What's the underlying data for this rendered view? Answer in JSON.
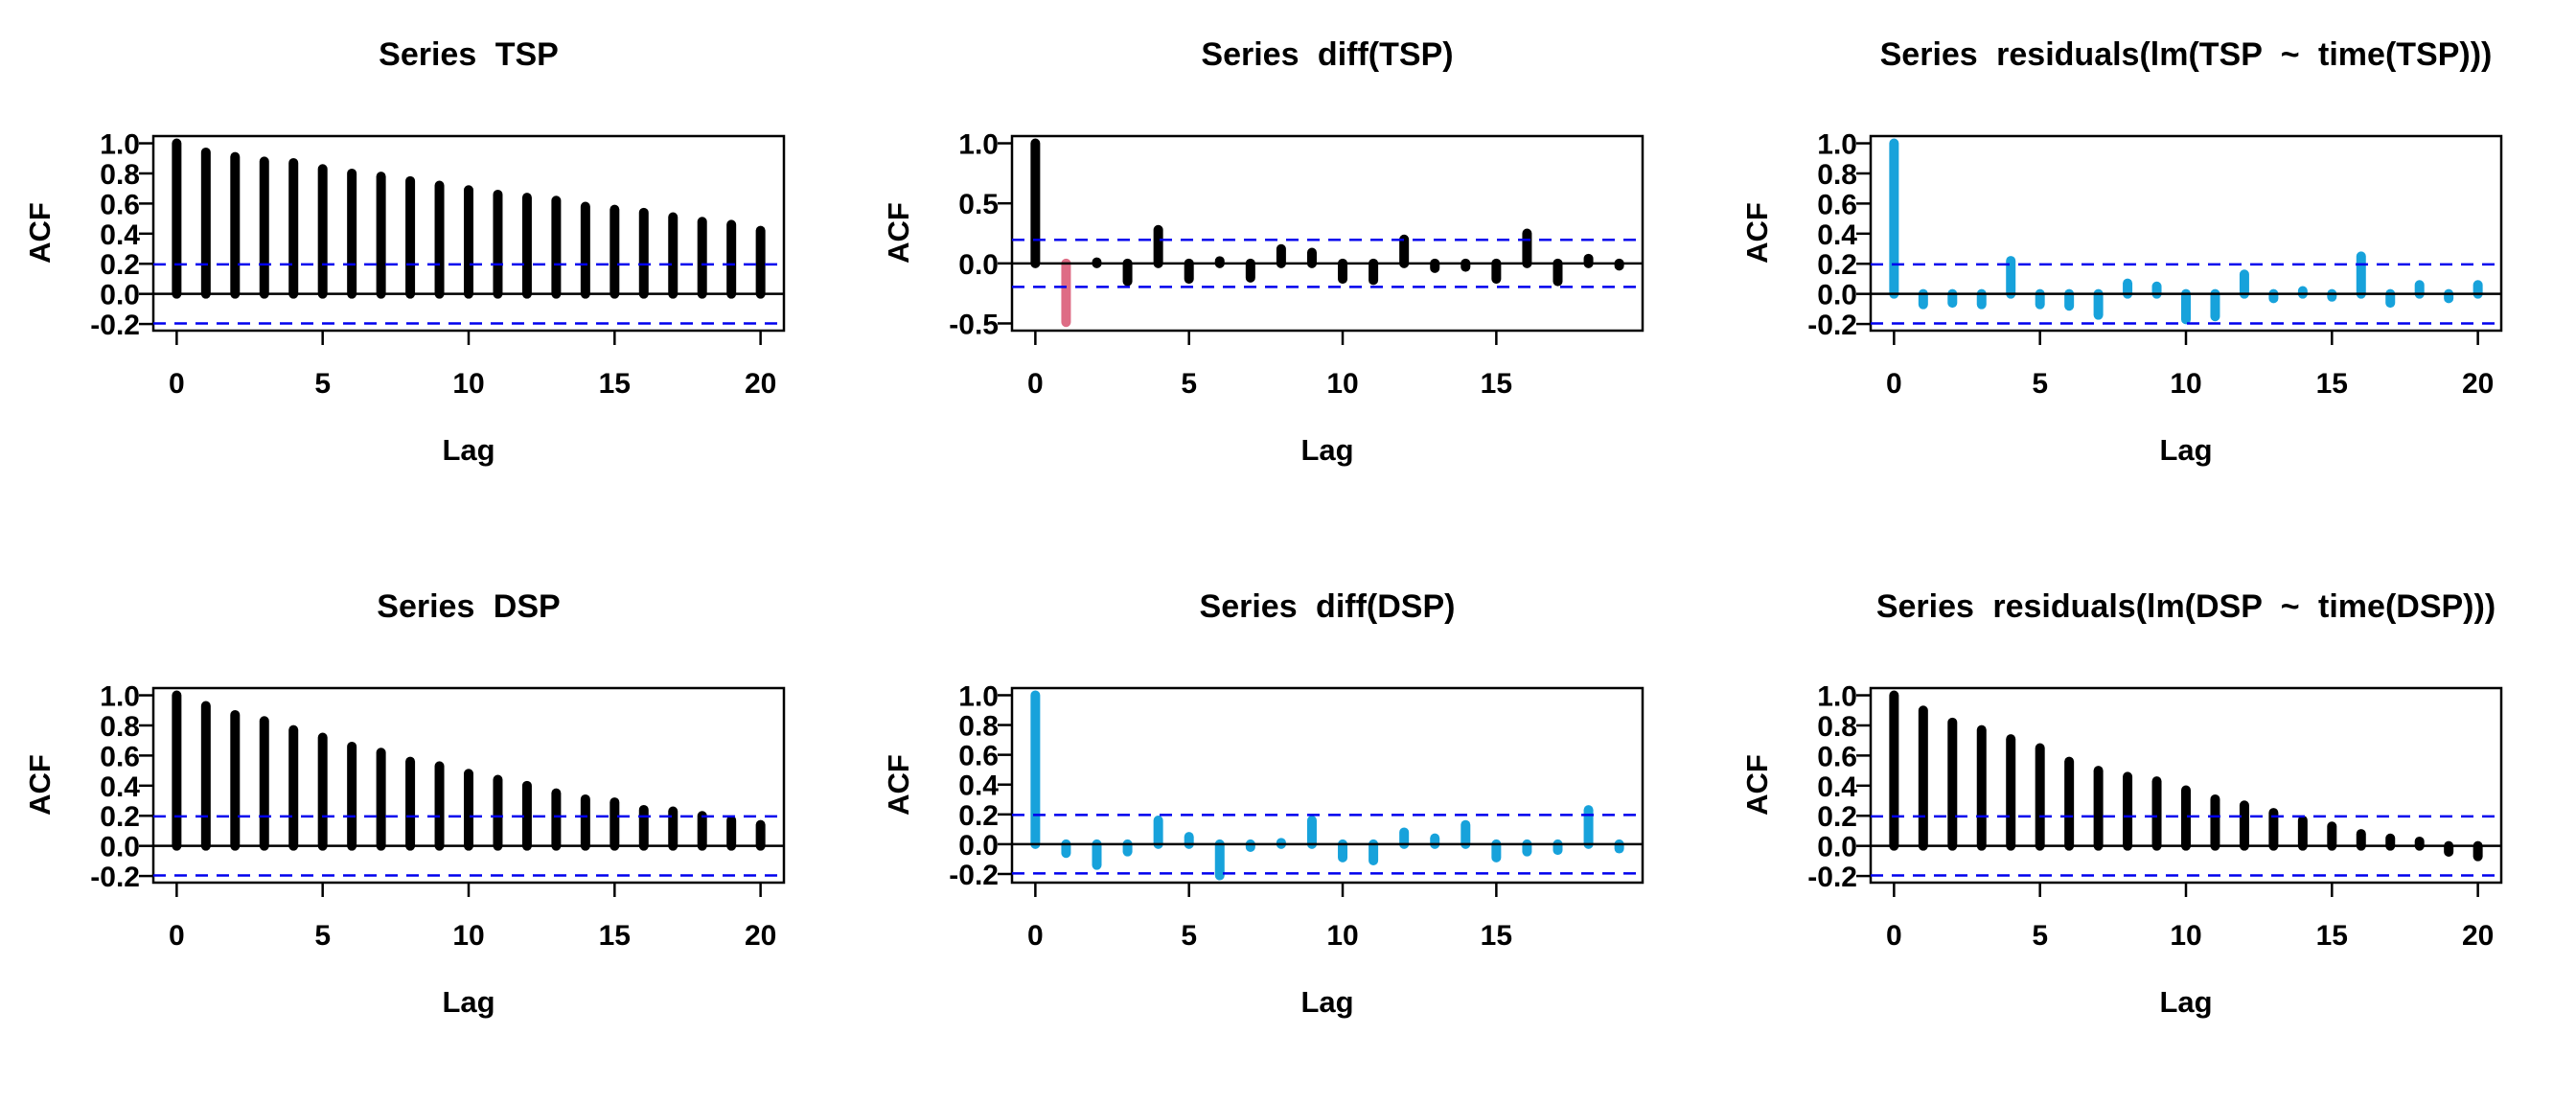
{
  "figure": {
    "background": "#ffffff",
    "grid": {
      "rows": 2,
      "cols": 3
    }
  },
  "colors": {
    "bar_black": "#000000",
    "bar_blue": "#17A2DB",
    "bar_pink": "#DE6C85",
    "confidence_band_blue": "#0000EE",
    "axis_black": "#000000"
  },
  "chart_data": [
    {
      "type": "bar",
      "title": "Series TSP",
      "xlabel": "Lag",
      "ylabel": "ACF",
      "bar_color": "#000000",
      "special_bar_colors": {},
      "conf_band": 0.196,
      "grid": false,
      "lags": [
        0,
        1,
        2,
        3,
        4,
        5,
        6,
        7,
        8,
        9,
        10,
        11,
        12,
        13,
        14,
        15,
        16,
        17,
        18,
        19,
        20
      ],
      "values": [
        1.0,
        0.94,
        0.91,
        0.88,
        0.87,
        0.83,
        0.8,
        0.78,
        0.75,
        0.72,
        0.69,
        0.66,
        0.64,
        0.62,
        0.58,
        0.56,
        0.54,
        0.51,
        0.48,
        0.46,
        0.42
      ],
      "xlim": [
        -0.8,
        20.8
      ],
      "ylim": [
        -0.244,
        1.048
      ],
      "xticks": [
        0,
        5,
        10,
        15,
        20
      ],
      "xtick_labels": [
        "0",
        "5",
        "10",
        "15",
        "20"
      ],
      "yticks": [
        1.0,
        0.8,
        0.6,
        0.4,
        0.2,
        0.0,
        -0.2
      ],
      "ytick_labels": [
        "1.0",
        "0.8",
        "0.6",
        "0.4",
        "0.2",
        "0.0",
        "-0.2"
      ]
    },
    {
      "type": "bar",
      "title": "Series diff(TSP)",
      "xlabel": "Lag",
      "ylabel": "ACF",
      "bar_color": "#000000",
      "special_bar_colors": {
        "1": "#DE6C85"
      },
      "conf_band": 0.196,
      "grid": false,
      "lags": [
        0,
        1,
        2,
        3,
        4,
        5,
        6,
        7,
        8,
        9,
        10,
        11,
        12,
        13,
        14,
        15,
        16,
        17,
        18,
        19
      ],
      "values": [
        1.0,
        -0.49,
        0.01,
        -0.15,
        0.28,
        -0.13,
        0.02,
        -0.12,
        0.12,
        0.09,
        -0.13,
        -0.14,
        0.2,
        -0.04,
        -0.03,
        -0.13,
        0.25,
        -0.15,
        0.04,
        -0.02
      ],
      "xlim": [
        -0.76,
        19.76
      ],
      "ylim": [
        -0.56,
        1.06
      ],
      "xticks": [
        0,
        5,
        10,
        15
      ],
      "xtick_labels": [
        "0",
        "5",
        "10",
        "15"
      ],
      "yticks": [
        1.0,
        0.5,
        0.0,
        -0.5
      ],
      "ytick_labels": [
        "1.0",
        "0.5",
        "0.0",
        "-0.5"
      ]
    },
    {
      "type": "bar",
      "title": "Series residuals(lm(TSP ~ time(TSP)))",
      "xlabel": "Lag",
      "ylabel": "ACF",
      "bar_color": "#17A2DB",
      "special_bar_colors": {},
      "conf_band": 0.196,
      "grid": false,
      "lags": [
        0,
        1,
        2,
        3,
        4,
        5,
        6,
        7,
        8,
        9,
        10,
        11,
        12,
        13,
        14,
        15,
        16,
        17,
        18,
        19,
        20
      ],
      "values": [
        1.0,
        -0.07,
        -0.06,
        -0.07,
        0.22,
        -0.07,
        -0.08,
        -0.14,
        0.07,
        0.05,
        -0.17,
        -0.15,
        0.13,
        -0.03,
        0.02,
        -0.02,
        0.25,
        -0.06,
        0.06,
        -0.03,
        0.06
      ],
      "xlim": [
        -0.8,
        20.8
      ],
      "ylim": [
        -0.244,
        1.048
      ],
      "xticks": [
        0,
        5,
        10,
        15,
        20
      ],
      "xtick_labels": [
        "0",
        "5",
        "10",
        "15",
        "20"
      ],
      "yticks": [
        1.0,
        0.8,
        0.6,
        0.4,
        0.2,
        0.0,
        -0.2
      ],
      "ytick_labels": [
        "1.0",
        "0.8",
        "0.6",
        "0.4",
        "0.2",
        "0.0",
        "-0.2"
      ]
    },
    {
      "type": "bar",
      "title": "Series DSP",
      "xlabel": "Lag",
      "ylabel": "ACF",
      "bar_color": "#000000",
      "special_bar_colors": {},
      "conf_band": 0.196,
      "grid": false,
      "lags": [
        0,
        1,
        2,
        3,
        4,
        5,
        6,
        7,
        8,
        9,
        10,
        11,
        12,
        13,
        14,
        15,
        16,
        17,
        18,
        19,
        20
      ],
      "values": [
        1.0,
        0.93,
        0.87,
        0.83,
        0.77,
        0.72,
        0.66,
        0.62,
        0.56,
        0.53,
        0.48,
        0.44,
        0.4,
        0.35,
        0.31,
        0.29,
        0.24,
        0.23,
        0.2,
        0.17,
        0.14
      ],
      "xlim": [
        -0.8,
        20.8
      ],
      "ylim": [
        -0.244,
        1.048
      ],
      "xticks": [
        0,
        5,
        10,
        15,
        20
      ],
      "xtick_labels": [
        "0",
        "5",
        "10",
        "15",
        "20"
      ],
      "yticks": [
        1.0,
        0.8,
        0.6,
        0.4,
        0.2,
        0.0,
        -0.2
      ],
      "ytick_labels": [
        "1.0",
        "0.8",
        "0.6",
        "0.4",
        "0.2",
        "0.0",
        "-0.2"
      ]
    },
    {
      "type": "bar",
      "title": "Series diff(DSP)",
      "xlabel": "Lag",
      "ylabel": "ACF",
      "bar_color": "#17A2DB",
      "special_bar_colors": {},
      "conf_band": 0.196,
      "grid": false,
      "lags": [
        0,
        1,
        2,
        3,
        4,
        5,
        6,
        7,
        8,
        9,
        10,
        11,
        12,
        13,
        14,
        15,
        16,
        17,
        18,
        19
      ],
      "values": [
        1.0,
        -0.06,
        -0.14,
        -0.05,
        0.16,
        0.05,
        -0.21,
        -0.02,
        0.01,
        0.16,
        -0.09,
        -0.11,
        0.08,
        0.04,
        0.13,
        -0.09,
        -0.05,
        -0.04,
        0.23,
        -0.03
      ],
      "xlim": [
        -0.76,
        19.76
      ],
      "ylim": [
        -0.258,
        1.048
      ],
      "xticks": [
        0,
        5,
        10,
        15
      ],
      "xtick_labels": [
        "0",
        "5",
        "10",
        "15"
      ],
      "yticks": [
        1.0,
        0.8,
        0.6,
        0.4,
        0.2,
        0.0,
        -0.2
      ],
      "ytick_labels": [
        "1.0",
        "0.8",
        "0.6",
        "0.4",
        "0.2",
        "0.0",
        "-0.2"
      ]
    },
    {
      "type": "bar",
      "title": "Series residuals(lm(DSP ~ time(DSP)))",
      "xlabel": "Lag",
      "ylabel": "ACF",
      "bar_color": "#000000",
      "special_bar_colors": {},
      "conf_band": 0.196,
      "grid": false,
      "lags": [
        0,
        1,
        2,
        3,
        4,
        5,
        6,
        7,
        8,
        9,
        10,
        11,
        12,
        13,
        14,
        15,
        16,
        17,
        18,
        19,
        20
      ],
      "values": [
        1.0,
        0.9,
        0.82,
        0.77,
        0.71,
        0.65,
        0.56,
        0.5,
        0.46,
        0.43,
        0.37,
        0.31,
        0.27,
        0.22,
        0.17,
        0.13,
        0.08,
        0.05,
        0.03,
        -0.04,
        -0.07
      ],
      "xlim": [
        -0.8,
        20.8
      ],
      "ylim": [
        -0.244,
        1.048
      ],
      "xticks": [
        0,
        5,
        10,
        15,
        20
      ],
      "xtick_labels": [
        "0",
        "5",
        "10",
        "15",
        "20"
      ],
      "yticks": [
        1.0,
        0.8,
        0.6,
        0.4,
        0.2,
        0.0,
        -0.2
      ],
      "ytick_labels": [
        "1.0",
        "0.8",
        "0.6",
        "0.4",
        "0.2",
        "0.0",
        "-0.2"
      ]
    }
  ]
}
